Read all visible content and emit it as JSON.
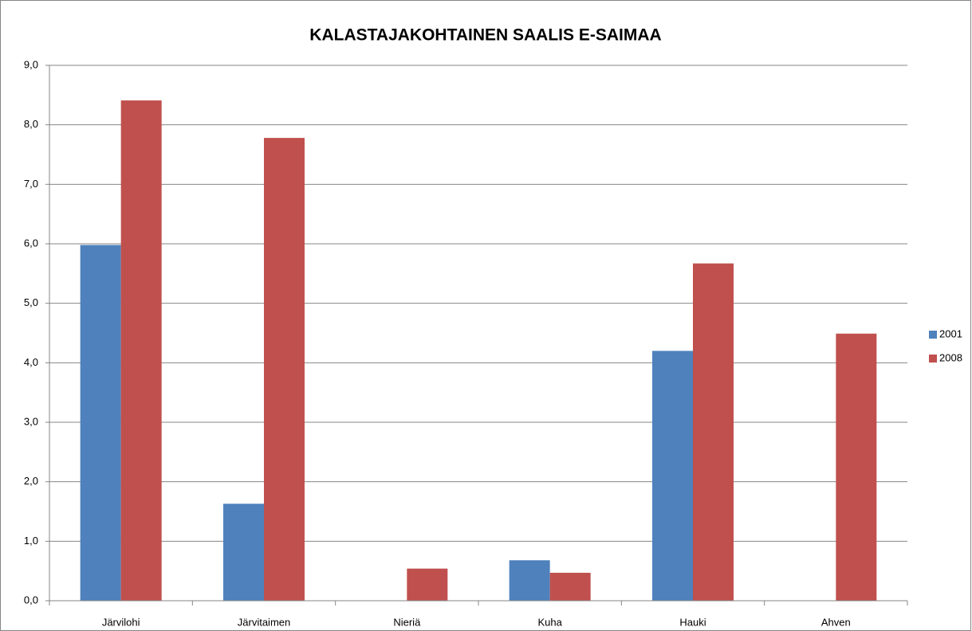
{
  "chart_data": {
    "type": "bar",
    "title": "KALASTAJAKOHTAINEN SAALIS E-SAIMAA",
    "categories": [
      "Järvilohi",
      "Järvitaimen",
      "Nieriä",
      "Kuha",
      "Hauki",
      "Ahven"
    ],
    "series": [
      {
        "name": "2001",
        "color": "#4f81bd",
        "values": [
          5.98,
          1.63,
          0,
          0.68,
          4.2,
          0
        ]
      },
      {
        "name": "2008",
        "color": "#c0504d",
        "values": [
          8.41,
          7.78,
          0.54,
          0.47,
          5.67,
          4.49
        ]
      }
    ],
    "ylim": [
      0,
      9
    ],
    "yticks": [
      {
        "value": 0,
        "label": "0,0"
      },
      {
        "value": 1,
        "label": "1,0"
      },
      {
        "value": 2,
        "label": "2,0"
      },
      {
        "value": 3,
        "label": "3,0"
      },
      {
        "value": 4,
        "label": "4,0"
      },
      {
        "value": 5,
        "label": "5,0"
      },
      {
        "value": 6,
        "label": "6,0"
      },
      {
        "value": 7,
        "label": "7,0"
      },
      {
        "value": 8,
        "label": "8,0"
      },
      {
        "value": 9,
        "label": "9,0"
      }
    ],
    "grid": true,
    "legend": "right"
  }
}
